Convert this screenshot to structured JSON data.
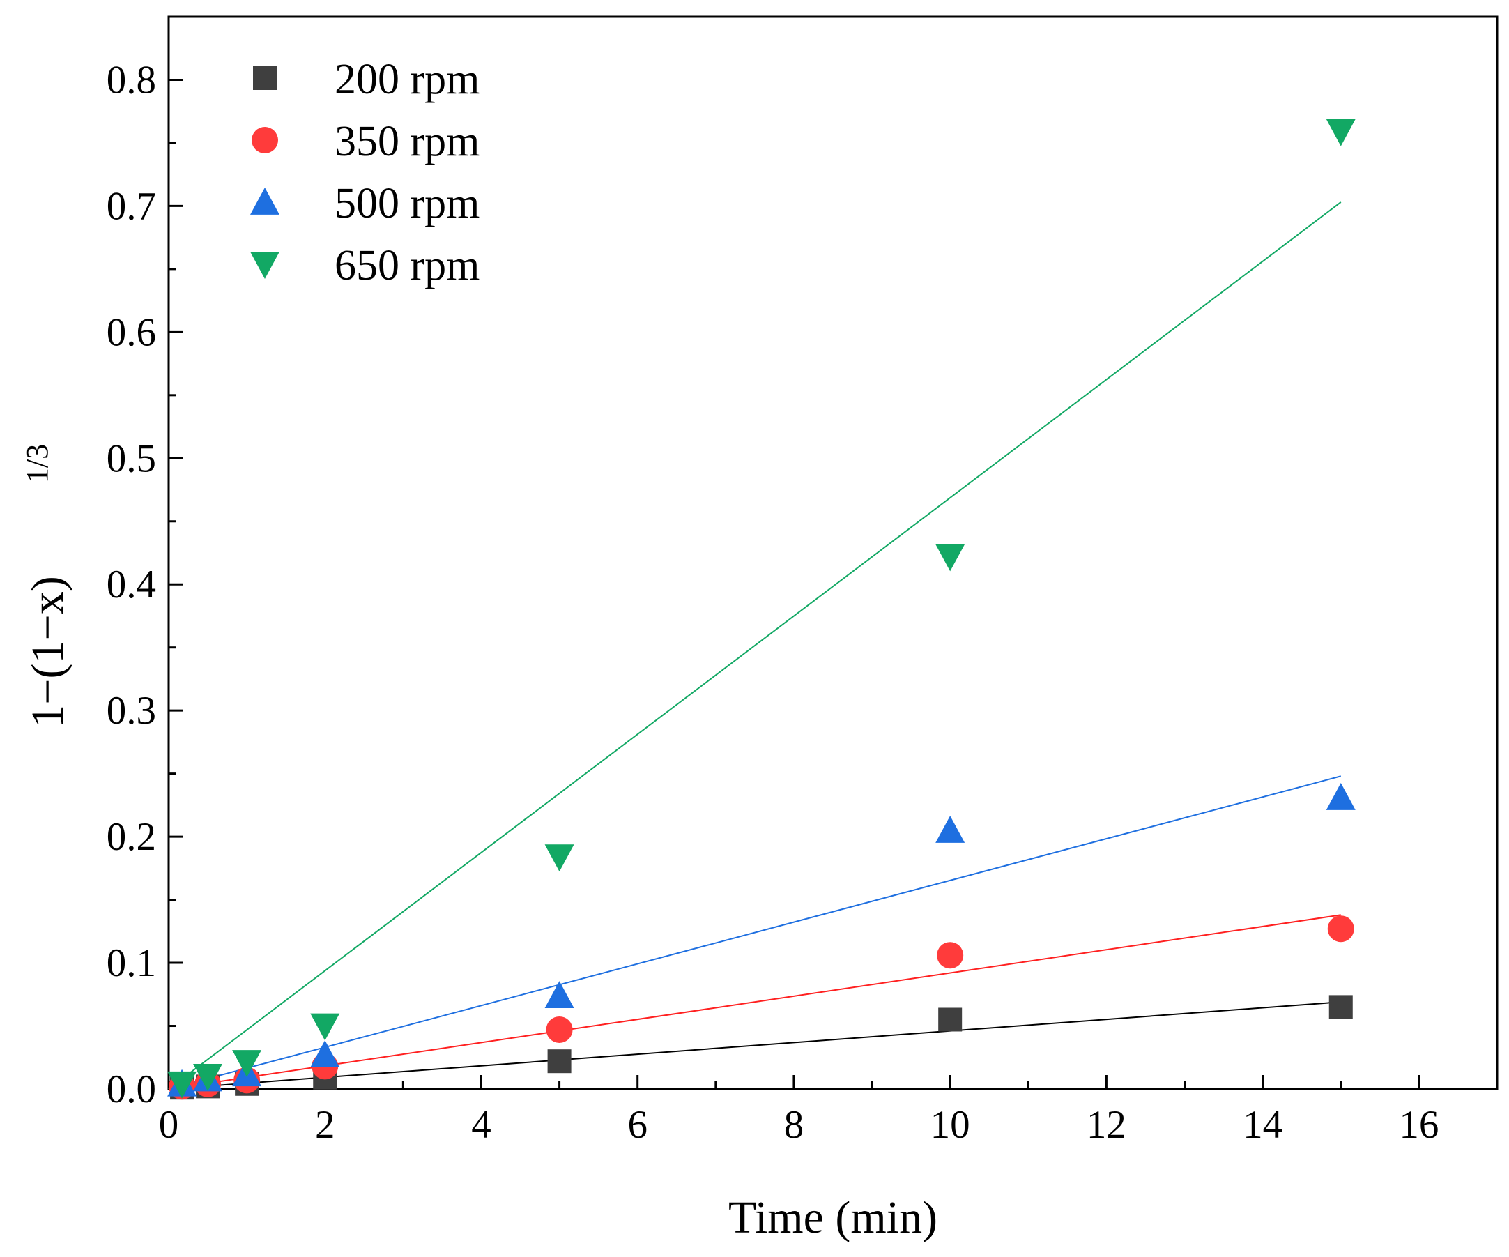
{
  "chart_data": {
    "type": "scatter",
    "title": "",
    "xlabel": "Time (min)",
    "ylabel": {
      "main": "1−(1−x)",
      "superscript": "1/3"
    },
    "xlim": [
      0,
      17
    ],
    "ylim": [
      0,
      0.85
    ],
    "x_major_ticks": [
      0,
      2,
      4,
      6,
      8,
      10,
      12,
      14,
      16
    ],
    "x_tick_labels": [
      "0",
      "2",
      "4",
      "6",
      "8",
      "10",
      "12",
      "14",
      "16"
    ],
    "y_major_ticks": [
      0,
      0.1,
      0.2,
      0.3,
      0.4,
      0.5,
      0.6,
      0.7,
      0.8
    ],
    "y_tick_labels": [
      "0.0",
      "0.1",
      "0.2",
      "0.3",
      "0.4",
      "0.5",
      "0.6",
      "0.7",
      "0.8"
    ],
    "grid": false,
    "legend_position": "top-left",
    "series": [
      {
        "name": "200 rpm",
        "marker": "square",
        "color": "#3f3f3f",
        "line_color": "#000000",
        "x": [
          0.17,
          0.5,
          1,
          2,
          5,
          10,
          15
        ],
        "y": [
          0.001,
          0.002,
          0.004,
          0.009,
          0.022,
          0.055,
          0.065
        ],
        "fit": {
          "x": [
            0,
            15
          ],
          "y": [
            0,
            0.069
          ]
        }
      },
      {
        "name": "350 rpm",
        "marker": "circle",
        "color": "#ff3b3b",
        "line_color": "#ff2020",
        "x": [
          0.17,
          0.5,
          1,
          2,
          5,
          10,
          15
        ],
        "y": [
          0.002,
          0.004,
          0.007,
          0.018,
          0.047,
          0.106,
          0.127
        ],
        "fit": {
          "x": [
            0,
            15
          ],
          "y": [
            0,
            0.138
          ]
        }
      },
      {
        "name": "500 rpm",
        "marker": "triangle-up",
        "color": "#1e6fe0",
        "line_color": "#1e6fe0",
        "x": [
          0.17,
          0.5,
          1,
          2,
          5,
          10,
          15
        ],
        "y": [
          0.004,
          0.008,
          0.012,
          0.027,
          0.074,
          0.205,
          0.231
        ],
        "fit": {
          "x": [
            0,
            15
          ],
          "y": [
            0,
            0.248
          ]
        }
      },
      {
        "name": "650 rpm",
        "marker": "triangle-down",
        "color": "#12a864",
        "line_color": "#12a864",
        "x": [
          0.17,
          0.5,
          1,
          2,
          5,
          10,
          15
        ],
        "y": [
          0.004,
          0.01,
          0.021,
          0.05,
          0.184,
          0.422,
          0.759
        ],
        "fit": {
          "x": [
            0,
            15
          ],
          "y": [
            0,
            0.703
          ]
        }
      }
    ]
  }
}
